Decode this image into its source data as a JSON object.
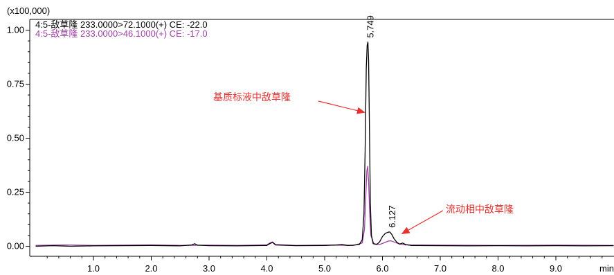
{
  "chart_data": {
    "type": "line",
    "y_scale_note": "(x100,000)",
    "xlabel": "min",
    "xlim": [
      0.0,
      10.0
    ],
    "ylim": [
      -0.02,
      1.05
    ],
    "x_ticks": [
      {
        "value": 1.0,
        "label": "1.0"
      },
      {
        "value": 2.0,
        "label": "2.0"
      },
      {
        "value": 3.0,
        "label": "3.0"
      },
      {
        "value": 4.0,
        "label": "4.0"
      },
      {
        "value": 5.0,
        "label": "5.0"
      },
      {
        "value": 6.0,
        "label": "6.0"
      },
      {
        "value": 7.0,
        "label": "7.0"
      },
      {
        "value": 8.0,
        "label": "8.0"
      },
      {
        "value": 9.0,
        "label": "9.0"
      }
    ],
    "y_ticks": [
      {
        "value": 0.0,
        "label": "0.00"
      },
      {
        "value": 0.25,
        "label": "0.25"
      },
      {
        "value": 0.5,
        "label": "0.50"
      },
      {
        "value": 0.75,
        "label": "0.75"
      },
      {
        "value": 1.0,
        "label": "1.00"
      }
    ],
    "series": [
      {
        "name": "4:5-敌草隆 233.0000>72.1000(+) CE: -22.0",
        "color": "#000000",
        "x": [
          0.0,
          0.3,
          0.6,
          1.0,
          1.5,
          2.0,
          2.5,
          2.7,
          2.75,
          2.8,
          3.0,
          3.5,
          4.0,
          4.05,
          4.1,
          4.15,
          4.5,
          5.0,
          5.2,
          5.3,
          5.4,
          5.5,
          5.6,
          5.65,
          5.68,
          5.7,
          5.72,
          5.735,
          5.749,
          5.76,
          5.775,
          5.79,
          5.81,
          5.84,
          5.9,
          5.95,
          6.0,
          6.05,
          6.1,
          6.127,
          6.16,
          6.2,
          6.25,
          6.3,
          6.35,
          6.4,
          6.5,
          7.0,
          7.5,
          8.0,
          8.5,
          9.0,
          9.5,
          10.0
        ],
        "y": [
          0.0,
          0.003,
          0.0,
          0.002,
          0.003,
          0.004,
          0.002,
          0.006,
          0.012,
          0.005,
          0.003,
          0.002,
          0.004,
          0.012,
          0.018,
          0.006,
          0.003,
          0.004,
          0.006,
          0.008,
          0.004,
          0.005,
          0.008,
          0.03,
          0.15,
          0.45,
          0.82,
          0.93,
          0.945,
          0.86,
          0.55,
          0.2,
          0.05,
          0.012,
          0.008,
          0.02,
          0.045,
          0.06,
          0.065,
          0.066,
          0.055,
          0.035,
          0.018,
          0.01,
          0.015,
          0.008,
          0.004,
          0.003,
          0.002,
          0.003,
          0.002,
          0.003,
          0.002,
          0.003
        ]
      },
      {
        "name": "4:5-敌草隆 233.0000>46.1000(+) CE: -17.0",
        "color": "#a040a8",
        "x": [
          0.0,
          0.5,
          1.0,
          1.5,
          2.0,
          2.5,
          3.0,
          3.5,
          4.0,
          4.05,
          4.1,
          4.15,
          4.5,
          5.0,
          5.5,
          5.65,
          5.69,
          5.71,
          5.73,
          5.745,
          5.76,
          5.78,
          5.8,
          5.85,
          5.95,
          6.05,
          6.1,
          6.15,
          6.2,
          6.3,
          6.4,
          7.0,
          8.0,
          9.0,
          10.0
        ],
        "y": [
          0.004,
          0.006,
          0.004,
          0.005,
          0.006,
          0.004,
          0.005,
          0.004,
          0.006,
          0.015,
          0.02,
          0.008,
          0.004,
          0.005,
          0.004,
          0.015,
          0.08,
          0.22,
          0.35,
          0.37,
          0.3,
          0.15,
          0.05,
          0.012,
          0.008,
          0.018,
          0.024,
          0.025,
          0.02,
          0.01,
          0.006,
          0.005,
          0.004,
          0.005,
          0.004
        ]
      }
    ],
    "peak_labels": [
      {
        "x": 5.749,
        "y": 0.945,
        "text": "5.749"
      },
      {
        "x": 6.127,
        "y": 0.066,
        "text": "6.127"
      }
    ],
    "annotations": [
      {
        "text": "基质标液中敌草隆",
        "color": "#e8312f",
        "arrow_to_x": 5.73,
        "arrow_to_y": 0.62
      },
      {
        "text": "流动相中敌草隆",
        "color": "#e8312f",
        "arrow_to_x": 6.25,
        "arrow_to_y": 0.06
      }
    ],
    "grid": false,
    "legend_position": "top-left"
  }
}
